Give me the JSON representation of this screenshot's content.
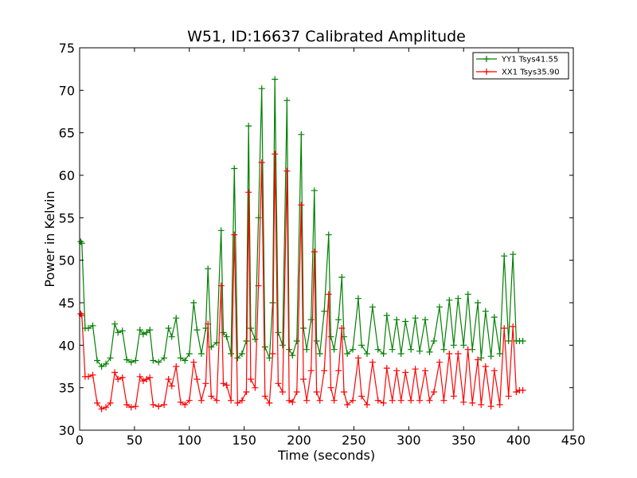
{
  "chart_data": {
    "type": "line",
    "title": "W51, ID:16637 Calibrated Amplitude",
    "xlabel": "Time (seconds)",
    "ylabel": "Power in Kelvin",
    "xlim": [
      0,
      450
    ],
    "ylim": [
      30,
      75
    ],
    "x_ticks": [
      0,
      50,
      100,
      150,
      200,
      250,
      300,
      350,
      400,
      450
    ],
    "y_ticks": [
      30,
      35,
      40,
      45,
      50,
      55,
      60,
      65,
      70,
      75
    ],
    "grid": false,
    "legend_position": "top-right",
    "marker": "plus",
    "series": [
      {
        "name": "YY1 Tsys41.55",
        "color": "#008000",
        "x": [
          1,
          2,
          5,
          8,
          12,
          16,
          20,
          24,
          28,
          32,
          35,
          39,
          43,
          47,
          51,
          55,
          58,
          61,
          64,
          67,
          72,
          77,
          81,
          84,
          88,
          92,
          96,
          100,
          104,
          107,
          111,
          115,
          117,
          120,
          125,
          129,
          131,
          134,
          138,
          141,
          144,
          148,
          152,
          154,
          156,
          160,
          163,
          166,
          169,
          173,
          176,
          178,
          181,
          185,
          189,
          191,
          194,
          198,
          202,
          204,
          207,
          211,
          214,
          216,
          219,
          223,
          227,
          229,
          232,
          236,
          239,
          241,
          244,
          249,
          254,
          257,
          262,
          267,
          272,
          277,
          280,
          285,
          289,
          293,
          297,
          302,
          306,
          310,
          315,
          319,
          323,
          328,
          332,
          337,
          341,
          345,
          350,
          354,
          358,
          363,
          366,
          370,
          375,
          378,
          383,
          387,
          391,
          395,
          398,
          401,
          404
        ],
        "values": [
          52.2,
          52.0,
          42.0,
          42.0,
          42.3,
          38.2,
          37.5,
          37.8,
          38.5,
          42.5,
          41.5,
          41.7,
          38.3,
          38.0,
          38.2,
          41.8,
          41.3,
          41.5,
          41.8,
          38.2,
          38.0,
          38.5,
          42.0,
          41.0,
          43.2,
          38.5,
          38.2,
          39.0,
          45.0,
          41.8,
          39.0,
          42.0,
          49.0,
          39.8,
          40.3,
          53.5,
          41.5,
          41.0,
          39.0,
          60.8,
          38.5,
          39.0,
          40.5,
          65.8,
          42.0,
          40.7,
          55.0,
          70.2,
          39.8,
          38.5,
          45.0,
          71.3,
          41.5,
          40.0,
          68.8,
          39.5,
          38.8,
          40.5,
          64.8,
          42.0,
          39.5,
          43.0,
          58.2,
          40.5,
          39.0,
          44.0,
          53.0,
          41.0,
          39.5,
          43.0,
          48.0,
          41.0,
          39.0,
          39.5,
          45.5,
          40.0,
          39.0,
          44.5,
          39.5,
          39.0,
          43.5,
          39.5,
          43.0,
          39.0,
          42.8,
          39.5,
          43.2,
          39.3,
          43.0,
          39.2,
          40.5,
          44.5,
          39.5,
          45.3,
          40.0,
          45.5,
          40.0,
          46.0,
          39.5,
          45.0,
          38.5,
          44.0,
          38.7,
          43.3,
          39.0,
          50.5,
          40.5,
          50.7,
          40.5,
          40.5,
          40.5
        ]
      },
      {
        "name": "XX1 Tsys35.90",
        "color": "#ff0000",
        "x": [
          1,
          2,
          5,
          8,
          12,
          16,
          20,
          24,
          28,
          32,
          35,
          39,
          43,
          47,
          51,
          55,
          58,
          61,
          64,
          67,
          72,
          77,
          81,
          84,
          88,
          92,
          96,
          100,
          104,
          107,
          111,
          115,
          117,
          120,
          125,
          129,
          131,
          134,
          138,
          141,
          144,
          148,
          152,
          154,
          156,
          160,
          163,
          166,
          169,
          173,
          176,
          178,
          181,
          185,
          189,
          191,
          194,
          198,
          202,
          204,
          207,
          211,
          214,
          216,
          219,
          223,
          227,
          229,
          232,
          236,
          239,
          241,
          244,
          249,
          254,
          257,
          262,
          267,
          272,
          277,
          280,
          285,
          289,
          293,
          297,
          302,
          306,
          310,
          315,
          319,
          323,
          328,
          332,
          337,
          341,
          345,
          350,
          354,
          358,
          363,
          366,
          370,
          375,
          378,
          383,
          387,
          391,
          395,
          398,
          401,
          404
        ],
        "values": [
          43.7,
          43.5,
          36.3,
          36.3,
          36.5,
          33.2,
          32.5,
          32.7,
          33.2,
          36.8,
          36.0,
          36.2,
          33.0,
          32.7,
          32.8,
          36.3,
          35.8,
          36.0,
          36.2,
          33.0,
          32.8,
          33.0,
          36.0,
          35.2,
          37.5,
          33.3,
          33.0,
          33.5,
          38.0,
          36.0,
          33.5,
          35.5,
          42.5,
          34.0,
          33.5,
          47.0,
          35.5,
          35.3,
          33.5,
          53.0,
          33.2,
          33.5,
          34.5,
          58.0,
          36.0,
          35.0,
          47.0,
          61.5,
          34.0,
          33.2,
          39.0,
          62.5,
          35.5,
          34.5,
          60.5,
          33.5,
          33.3,
          34.5,
          56.5,
          36.0,
          33.5,
          37.0,
          51.0,
          34.5,
          33.5,
          37.0,
          46.0,
          35.0,
          33.5,
          37.0,
          42.0,
          34.5,
          33.0,
          33.5,
          38.5,
          34.0,
          33.0,
          38.0,
          33.5,
          33.2,
          37.3,
          33.5,
          37.0,
          33.5,
          36.8,
          33.5,
          37.2,
          33.5,
          37.0,
          33.5,
          34.5,
          38.0,
          33.5,
          39.0,
          34.0,
          39.0,
          33.3,
          39.5,
          33.2,
          38.3,
          33.0,
          37.5,
          32.8,
          37.0,
          33.0,
          42.0,
          34.0,
          42.2,
          34.5,
          34.7,
          34.7
        ]
      }
    ]
  }
}
